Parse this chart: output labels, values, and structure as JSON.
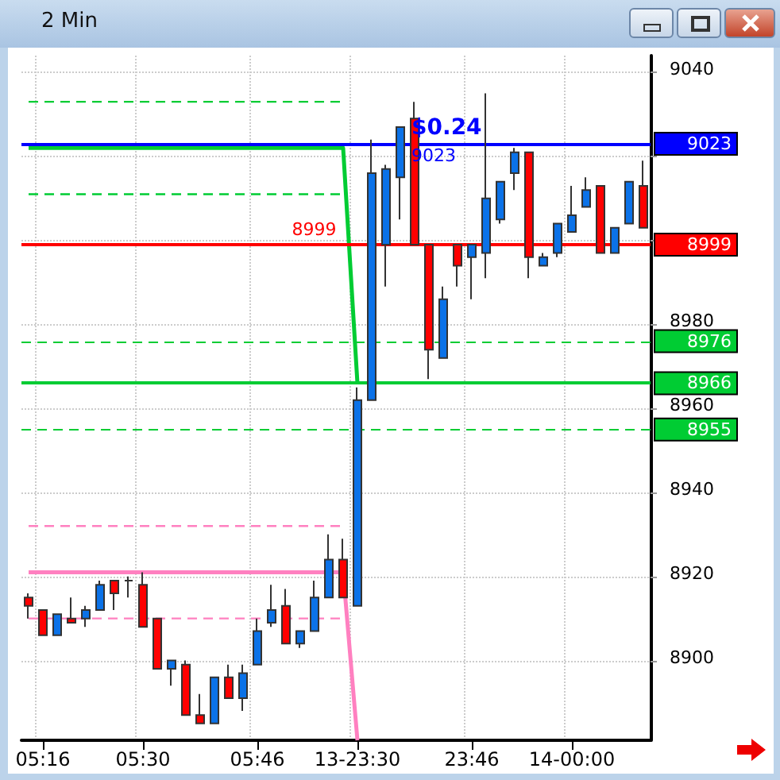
{
  "chart_data": {
    "type": "candlestick",
    "title": "2 Min",
    "categories": [
      null,
      "05:16",
      null,
      null,
      null,
      null,
      null,
      null,
      "05:30",
      null,
      null,
      null,
      null,
      null,
      null,
      null,
      "05:46",
      null,
      null,
      null,
      null,
      null,
      null,
      "13-23:30",
      null,
      null,
      null,
      null,
      null,
      null,
      null,
      "23:46",
      null,
      null,
      null,
      null,
      null,
      null,
      "14-00:00",
      null,
      null,
      null,
      null,
      null
    ],
    "series": [
      {
        "ohlc": [
          [
            8915,
            8916,
            8910,
            8913
          ],
          [
            8912,
            8912,
            8906,
            8906
          ],
          [
            8906,
            8911,
            8906,
            8911
          ],
          [
            8910,
            8915,
            8909,
            8909
          ],
          [
            8910,
            8913,
            8908,
            8912
          ],
          [
            8912,
            8919,
            8912,
            8918
          ],
          [
            8919,
            8919,
            8912,
            8916
          ],
          [
            8919,
            8920,
            8915,
            8919
          ],
          [
            8918,
            8921,
            8908,
            8908
          ],
          [
            8910,
            8910,
            8898,
            8898
          ],
          [
            8898,
            8900,
            8894,
            8900
          ],
          [
            8899,
            8900,
            8887,
            8887
          ],
          [
            8887,
            8892,
            8885,
            8885
          ],
          [
            8885,
            8896,
            8885,
            8896
          ],
          [
            8896,
            8899,
            8891,
            8891
          ],
          [
            8891,
            8899,
            8888,
            8897
          ],
          [
            8899,
            8910,
            8899,
            8907
          ],
          [
            8909,
            8918,
            8908,
            8912
          ],
          [
            8913,
            8917,
            8904,
            8904
          ],
          [
            8904,
            8907,
            8903,
            8907
          ],
          [
            8907,
            8919,
            8907,
            8915
          ],
          [
            8915,
            8930,
            8915,
            8924
          ],
          [
            8924,
            8929,
            8915,
            8915
          ],
          [
            8913,
            8965,
            8913,
            8962
          ],
          [
            8962,
            9024,
            8962,
            9016
          ],
          [
            8999,
            9018,
            8989,
            9017
          ],
          [
            9015,
            9027,
            9005,
            9027
          ],
          [
            9029,
            9033,
            8999,
            8999
          ],
          [
            8999,
            8999,
            8967,
            8974
          ],
          [
            8972,
            8989,
            8972,
            8986
          ],
          [
            8999,
            8999,
            8989,
            8994
          ],
          [
            8996,
            8999,
            8986,
            8999
          ],
          [
            8997,
            9035,
            8991,
            9010
          ],
          [
            9005,
            9014,
            9004,
            9014
          ],
          [
            9016,
            9022,
            9012,
            9021
          ],
          [
            9021,
            9021,
            8991,
            8996
          ],
          [
            8994,
            8997,
            8994,
            8996
          ],
          [
            8997,
            9004,
            8996,
            9004
          ],
          [
            9002,
            9013,
            9002,
            9006
          ],
          [
            9008,
            9015,
            9008,
            9012
          ],
          [
            9013,
            9013,
            8997,
            8997
          ],
          [
            8997,
            9003,
            8997,
            9003
          ],
          [
            9004,
            9014,
            9004,
            9014
          ],
          [
            9013,
            9019,
            9003,
            9003
          ]
        ],
        "colors": [
          "#ff0000",
          "#ff0000",
          "#0b72e8",
          "#ff0000",
          "#0b72e8",
          "#0b72e8",
          "#ff0000",
          "#333333",
          "#ff0000",
          "#ff0000",
          "#0b72e8",
          "#ff0000",
          "#ff0000",
          "#0b72e8",
          "#ff0000",
          "#0b72e8",
          "#0b72e8",
          "#0b72e8",
          "#ff0000",
          "#0b72e8",
          "#0b72e8",
          "#0b72e8",
          "#ff0000",
          "#0b72e8",
          "#0b72e8",
          "#0b72e8",
          "#0b72e8",
          "#ff0000",
          "#ff0000",
          "#0b72e8",
          "#ff0000",
          "#0b72e8",
          "#0b72e8",
          "#0b72e8",
          "#0b72e8",
          "#ff0000",
          "#0b72e8",
          "#0b72e8",
          "#0b72e8",
          "#0b72e8",
          "#ff0000",
          "#0b72e8",
          "#0b72e8",
          "#ff0000"
        ]
      },
      {
        "type": "line",
        "color": "#00cc33",
        "line_style": "solid",
        "values": [
          9022,
          9022,
          9022,
          9022,
          9022,
          9022,
          9022,
          9022,
          9022,
          9022,
          9022,
          9022,
          9022,
          9022,
          9022,
          9022,
          9022,
          9022,
          9022,
          9022,
          9022,
          9022,
          9022,
          8966,
          null,
          null,
          null,
          null,
          null,
          null,
          null,
          null,
          null,
          null,
          null,
          null,
          null,
          null,
          null,
          null,
          null,
          null,
          null,
          null
        ]
      },
      {
        "type": "line",
        "color": "#ff80c0",
        "line_style": "solid",
        "values": [
          8921,
          8921,
          8921,
          8921,
          8921,
          8921,
          8921,
          8921,
          8921,
          8921,
          8921,
          8921,
          8921,
          8921,
          8921,
          8921,
          8921,
          8921,
          8921,
          8921,
          8921,
          8921,
          8921,
          8881,
          null,
          null,
          null,
          null,
          null,
          null,
          null,
          null,
          null,
          null,
          null,
          null,
          null,
          null,
          null,
          null,
          null,
          null,
          null,
          null
        ]
      },
      {
        "type": "line",
        "color": "#00cc33",
        "line_style": "dashed",
        "values": [
          9033,
          9033,
          9033,
          9033,
          9033,
          9033,
          9033,
          9033,
          9033,
          9033,
          9033,
          9033,
          9033,
          9033,
          9033,
          9033,
          9033,
          9033,
          9033,
          9033,
          9033,
          9033,
          9033,
          null,
          null,
          null,
          null,
          null,
          null,
          null,
          null,
          null,
          null,
          null,
          null,
          null,
          null,
          null,
          null,
          null,
          null,
          null,
          null,
          null
        ]
      },
      {
        "type": "line",
        "color": "#00cc33",
        "line_style": "dashed",
        "values": [
          9011,
          9011,
          9011,
          9011,
          9011,
          9011,
          9011,
          9011,
          9011,
          9011,
          9011,
          9011,
          9011,
          9011,
          9011,
          9011,
          9011,
          9011,
          9011,
          9011,
          9011,
          9011,
          9011,
          null,
          null,
          null,
          null,
          null,
          null,
          null,
          null,
          null,
          null,
          null,
          null,
          null,
          null,
          null,
          null,
          null,
          null,
          null,
          null,
          null
        ]
      },
      {
        "type": "line",
        "color": "#ff80c0",
        "line_style": "dashed",
        "values": [
          8932,
          8932,
          8932,
          8932,
          8932,
          8932,
          8932,
          8932,
          8932,
          8932,
          8932,
          8932,
          8932,
          8932,
          8932,
          8932,
          8932,
          8932,
          8932,
          8932,
          8932,
          8932,
          8932,
          null,
          null,
          null,
          null,
          null,
          null,
          null,
          null,
          null,
          null,
          null,
          null,
          null,
          null,
          null,
          null,
          null,
          null,
          null,
          null,
          null
        ]
      },
      {
        "type": "line",
        "color": "#ff80c0",
        "line_style": "dashed",
        "values": [
          8910,
          8910,
          8910,
          8910,
          8910,
          8910,
          8910,
          8910,
          8910,
          8910,
          8910,
          8910,
          8910,
          8910,
          8910,
          8910,
          8910,
          8910,
          8910,
          8910,
          8910,
          8910,
          8910,
          null,
          null,
          null,
          null,
          null,
          null,
          null,
          null,
          null,
          null,
          null,
          null,
          null,
          null,
          null,
          null,
          null,
          null,
          null,
          null,
          null
        ]
      }
    ],
    "ylim": [
      8881,
      9044
    ],
    "yticks": [
      8900,
      8920,
      8940,
      8960,
      8980,
      {
        "value": 9000,
        "label": null
      },
      {
        "value": 9020,
        "label": null
      },
      9040
    ],
    "ref_lines": [
      {
        "axis": "y",
        "value": 9023,
        "label": "9023",
        "color": "#0000ff",
        "line_style": "solid"
      },
      {
        "axis": "y",
        "value": 8999,
        "label": "8999",
        "color": "#ff0000",
        "line_style": "solid"
      },
      {
        "axis": "y",
        "value": 8976,
        "label": "8976",
        "color": "#00cc33",
        "line_style": "dashed"
      },
      {
        "axis": "y",
        "value": 8966,
        "label": "8966",
        "color": "#00cc33",
        "line_style": "solid"
      },
      {
        "axis": "y",
        "value": 8955,
        "label": "8955",
        "color": "#00cc33",
        "line_style": "dashed"
      }
    ],
    "annotations": [
      "$0.24",
      "9023",
      "8999"
    ],
    "grid": true,
    "marker": "none"
  }
}
